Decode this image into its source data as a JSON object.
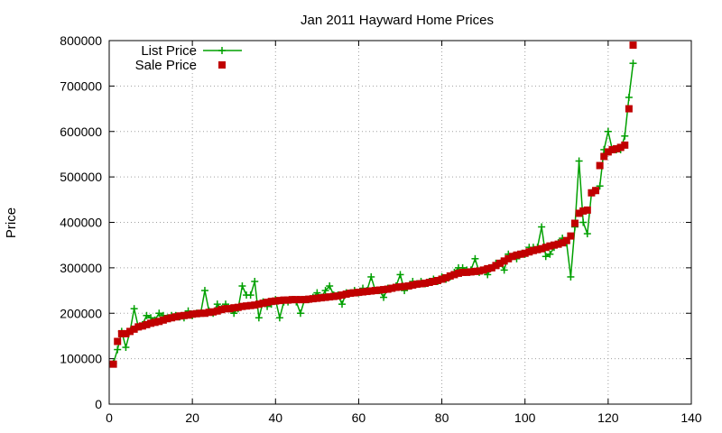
{
  "chart_data": {
    "type": "line",
    "title": "Jan 2011 Hayward Home Prices",
    "xlabel": "",
    "ylabel": "Price",
    "xlim": [
      0,
      140
    ],
    "ylim": [
      0,
      800000
    ],
    "xticks": [
      0,
      20,
      40,
      60,
      80,
      100,
      120,
      140
    ],
    "yticks": [
      0,
      100000,
      200000,
      300000,
      400000,
      500000,
      600000,
      700000,
      800000
    ],
    "grid": true,
    "legend_position": "top-left",
    "series": [
      {
        "name": "List Price",
        "color": "#00a000",
        "marker": "plus",
        "style": "line+marker",
        "x": [
          1,
          2,
          3,
          4,
          5,
          6,
          7,
          8,
          9,
          10,
          11,
          12,
          13,
          14,
          15,
          16,
          17,
          18,
          19,
          20,
          21,
          22,
          23,
          24,
          25,
          26,
          27,
          28,
          29,
          30,
          31,
          32,
          33,
          34,
          35,
          36,
          37,
          38,
          39,
          40,
          41,
          42,
          43,
          44,
          45,
          46,
          47,
          48,
          49,
          50,
          51,
          52,
          53,
          54,
          55,
          56,
          57,
          58,
          59,
          60,
          61,
          62,
          63,
          64,
          65,
          66,
          67,
          68,
          69,
          70,
          71,
          72,
          73,
          74,
          75,
          76,
          77,
          78,
          79,
          80,
          81,
          82,
          83,
          84,
          85,
          86,
          87,
          88,
          89,
          90,
          91,
          92,
          93,
          94,
          95,
          96,
          97,
          98,
          99,
          100,
          101,
          102,
          103,
          104,
          105,
          106,
          107,
          108,
          109,
          110,
          111,
          112,
          113,
          114,
          115,
          116,
          117,
          118,
          119,
          120,
          121,
          122,
          123,
          124,
          125,
          126
        ],
        "values": [
          90000,
          120000,
          160000,
          125000,
          160000,
          210000,
          170000,
          175000,
          195000,
          190000,
          185000,
          200000,
          195000,
          190000,
          195000,
          195000,
          192000,
          190000,
          205000,
          195000,
          200000,
          200000,
          250000,
          205000,
          200000,
          220000,
          210000,
          220000,
          210000,
          200000,
          210000,
          260000,
          240000,
          240000,
          270000,
          190000,
          225000,
          215000,
          220000,
          230000,
          190000,
          225000,
          225000,
          230000,
          225000,
          200000,
          230000,
          230000,
          235000,
          245000,
          235000,
          250000,
          260000,
          240000,
          240000,
          220000,
          245000,
          245000,
          250000,
          245000,
          255000,
          250000,
          280000,
          250000,
          250000,
          235000,
          255000,
          255000,
          260000,
          285000,
          250000,
          260000,
          270000,
          265000,
          270000,
          265000,
          270000,
          275000,
          270000,
          280000,
          275000,
          280000,
          290000,
          300000,
          300000,
          295000,
          295000,
          320000,
          290000,
          295000,
          285000,
          300000,
          310000,
          310000,
          295000,
          330000,
          325000,
          320000,
          330000,
          330000,
          345000,
          345000,
          345000,
          390000,
          325000,
          330000,
          345000,
          355000,
          365000,
          355000,
          280000,
          390000,
          535000,
          400000,
          375000,
          465000,
          470000,
          480000,
          560000,
          600000,
          560000,
          560000,
          560000,
          590000,
          675000,
          750000
        ]
      },
      {
        "name": "Sale Price",
        "color": "#c00000",
        "marker": "square",
        "style": "points",
        "x": [
          1,
          2,
          3,
          4,
          5,
          6,
          7,
          8,
          9,
          10,
          11,
          12,
          13,
          14,
          15,
          16,
          17,
          18,
          19,
          20,
          21,
          22,
          23,
          24,
          25,
          26,
          27,
          28,
          29,
          30,
          31,
          32,
          33,
          34,
          35,
          36,
          37,
          38,
          39,
          40,
          41,
          42,
          43,
          44,
          45,
          46,
          47,
          48,
          49,
          50,
          51,
          52,
          53,
          54,
          55,
          56,
          57,
          58,
          59,
          60,
          61,
          62,
          63,
          64,
          65,
          66,
          67,
          68,
          69,
          70,
          71,
          72,
          73,
          74,
          75,
          76,
          77,
          78,
          79,
          80,
          81,
          82,
          83,
          84,
          85,
          86,
          87,
          88,
          89,
          90,
          91,
          92,
          93,
          94,
          95,
          96,
          97,
          98,
          99,
          100,
          101,
          102,
          103,
          104,
          105,
          106,
          107,
          108,
          109,
          110,
          111,
          112,
          113,
          114,
          115,
          116,
          117,
          118,
          119,
          120,
          121,
          122,
          123,
          124,
          125,
          126
        ],
        "values": [
          88000,
          138000,
          155000,
          155000,
          160000,
          165000,
          170000,
          172000,
          175000,
          178000,
          180000,
          182000,
          185000,
          188000,
          190000,
          192000,
          194000,
          195000,
          196000,
          198000,
          199000,
          200000,
          200000,
          202000,
          203000,
          205000,
          208000,
          210000,
          210000,
          212000,
          213000,
          215000,
          216000,
          217000,
          218000,
          220000,
          222000,
          224000,
          226000,
          227000,
          228000,
          229000,
          229000,
          230000,
          230000,
          230000,
          230000,
          231000,
          232000,
          233000,
          234000,
          235000,
          236000,
          237000,
          238000,
          240000,
          242000,
          244000,
          245000,
          246000,
          247000,
          248000,
          249000,
          250000,
          251000,
          252000,
          253000,
          255000,
          257000,
          258000,
          259000,
          260000,
          262000,
          264000,
          265000,
          266000,
          268000,
          270000,
          272000,
          275000,
          278000,
          282000,
          285000,
          288000,
          290000,
          290000,
          291000,
          292000,
          293000,
          295000,
          298000,
          300000,
          305000,
          310000,
          315000,
          320000,
          325000,
          328000,
          330000,
          332000,
          335000,
          338000,
          340000,
          342000,
          345000,
          348000,
          350000,
          352000,
          355000,
          360000,
          370000,
          398000,
          420000,
          425000,
          427000,
          465000,
          470000,
          525000,
          545000,
          555000,
          560000,
          562000,
          565000,
          570000,
          650000,
          790000
        ]
      }
    ]
  }
}
